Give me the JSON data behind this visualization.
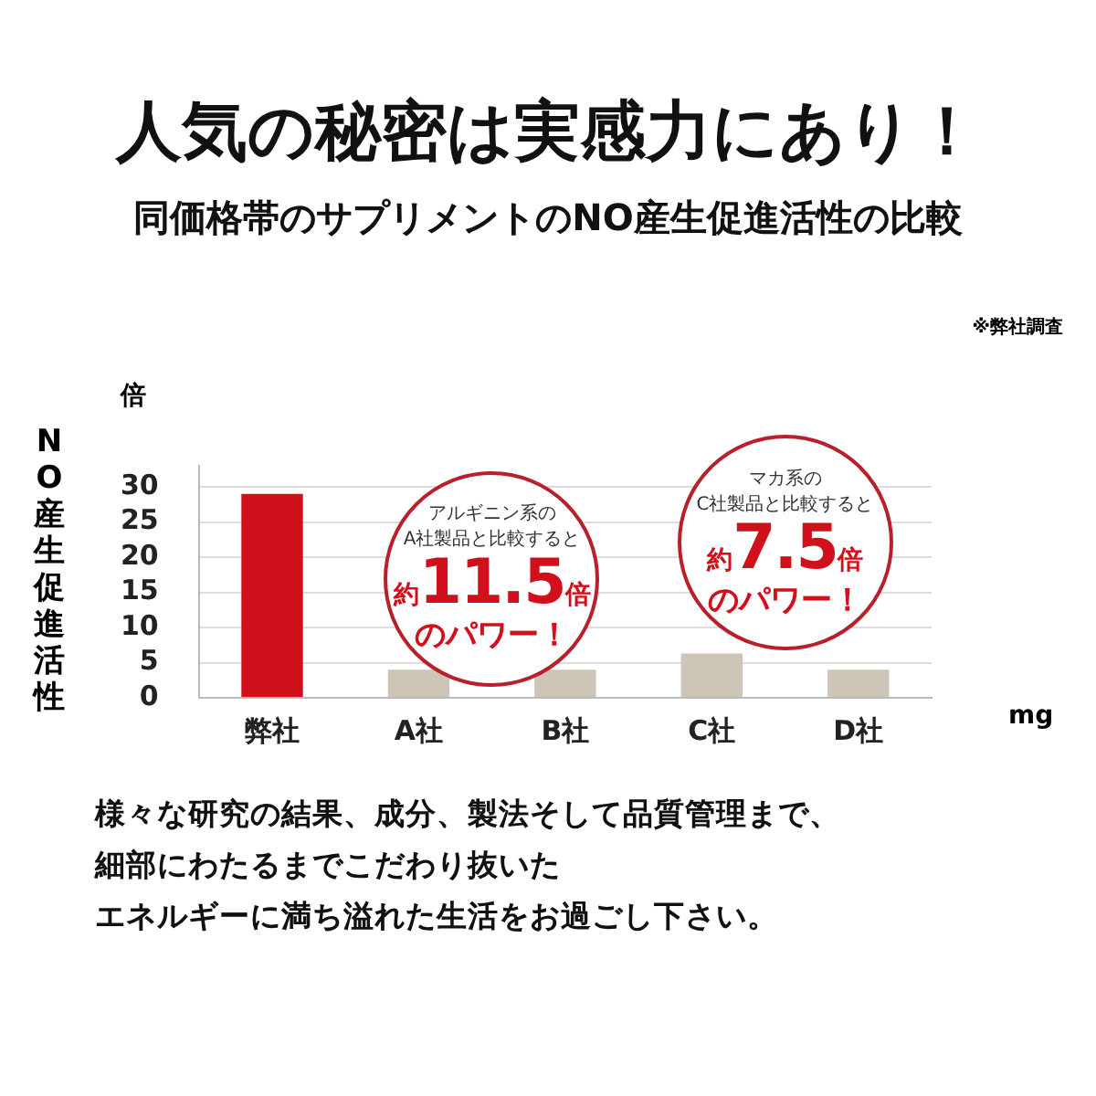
{
  "chart_data": {
    "type": "bar",
    "title": "人気の秘密は実感力にあり！",
    "subtitle": "同価格帯のサプリメントのNO産生促進活性の比較",
    "ylabel": "NO産生促進活性",
    "categories": [
      "弊社",
      "A社",
      "B社",
      "C社",
      "D社"
    ],
    "values": [
      29,
      4,
      4,
      6.3,
      4
    ],
    "colors": [
      "#d0111b",
      "#cdc5b6",
      "#cdc5b6",
      "#cdc5b6",
      "#cdc5b6"
    ],
    "ylim": [
      0,
      33
    ],
    "yticks": [
      0,
      5,
      10,
      15,
      20,
      25,
      30
    ],
    "grid": "y",
    "legend": false,
    "annotations": [
      "※弊社調査",
      "倍",
      "mg",
      "アルギニン系の",
      "A社製品と比較すると",
      "約11.5倍",
      "のパワー！",
      "マカ系の",
      "C社製品と比較すると",
      "約7.5倍",
      "のパワー！",
      "様々な研究の結果、成分、製法そして品質管理まで、",
      "細部にわたるまでこだわり抜いた",
      "エネルギーに満ち溢れた生活をお過ごし下さい。"
    ]
  }
}
